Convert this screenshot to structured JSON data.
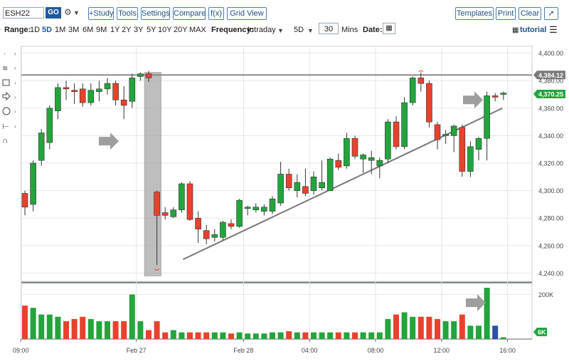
{
  "toolbar": {
    "symbol": "ESH22",
    "go": "GO",
    "study": "+Study",
    "tools": "Tools",
    "settings": "Settings",
    "compare": "Compare",
    "fx": "f(x)",
    "grid_view": "Grid View",
    "templates": "Templates",
    "print": "Print",
    "clear": "Clear"
  },
  "controls": {
    "range_label": "Range:",
    "periods": [
      "1D",
      "5D",
      "1M",
      "3M",
      "6M",
      "9M",
      "1Y",
      "2Y",
      "3Y",
      "5Y",
      "10Y",
      "20Y",
      "MAX"
    ],
    "active_period": "5D",
    "frequency_label": "Frequency:",
    "frequency": "Intraday",
    "interval": "5D",
    "minutes_value": "30",
    "minutes_unit": "Mins",
    "date_label": "Date:",
    "tutorial": "tutorial"
  },
  "chart_data": {
    "type": "candlestick",
    "y_range": [
      4234,
      4405
    ],
    "y_ticks": [
      4240,
      4260,
      4280,
      4300,
      4320,
      4340,
      4360,
      4380,
      4400
    ],
    "y_tick_labels": [
      "4,240.00",
      "4,260.00",
      "4,280.00",
      "4,300.00",
      "4,320.00",
      "4,340.00",
      "4,360.00",
      "4,380.00",
      "4,400.00"
    ],
    "x_labels": [
      "09:00",
      "Feb 27",
      "Feb 28",
      "04:00",
      "08:00",
      "12:00",
      "16:00"
    ],
    "x_label_bar": [
      0,
      14,
      27,
      35,
      43,
      51,
      59
    ],
    "horizontal_line": {
      "value": 4384.12,
      "label": "4,384.12"
    },
    "last_price": {
      "value": 4370.25,
      "label": "4,370.25"
    },
    "volume_ticks": [
      "200K",
      "6K"
    ],
    "volume_max": 230,
    "candles": [
      {
        "o": 4298,
        "h": 4300,
        "l": 4282,
        "c": 4288,
        "v": 150
      },
      {
        "o": 4290,
        "h": 4322,
        "l": 4285,
        "c": 4320,
        "v": 140
      },
      {
        "o": 4322,
        "h": 4345,
        "l": 4318,
        "c": 4342,
        "v": 110
      },
      {
        "o": 4335,
        "h": 4362,
        "l": 4330,
        "c": 4360,
        "v": 110
      },
      {
        "o": 4358,
        "h": 4378,
        "l": 4352,
        "c": 4375,
        "v": 100
      },
      {
        "o": 4375,
        "h": 4380,
        "l": 4366,
        "c": 4374,
        "v": 80
      },
      {
        "o": 4373,
        "h": 4378,
        "l": 4363,
        "c": 4372,
        "v": 90
      },
      {
        "o": 4374,
        "h": 4378,
        "l": 4361,
        "c": 4364,
        "v": 100
      },
      {
        "o": 4364,
        "h": 4378,
        "l": 4362,
        "c": 4373,
        "v": 90
      },
      {
        "o": 4372,
        "h": 4380,
        "l": 4365,
        "c": 4374,
        "v": 80
      },
      {
        "o": 4374,
        "h": 4382,
        "l": 4370,
        "c": 4378,
        "v": 80
      },
      {
        "o": 4378,
        "h": 4380,
        "l": 4362,
        "c": 4366,
        "v": 80
      },
      {
        "o": 4366,
        "h": 4376,
        "l": 4352,
        "c": 4362,
        "v": 80
      },
      {
        "o": 4365,
        "h": 4385,
        "l": 4360,
        "c": 4382,
        "v": 200
      },
      {
        "o": 4383,
        "h": 4386,
        "l": 4380,
        "c": 4385,
        "v": 80
      },
      {
        "o": 4385,
        "h": 4387,
        "l": 4379,
        "c": 4382,
        "v": 40
      },
      {
        "o": 4299,
        "h": 4300,
        "l": 4246,
        "c": 4282,
        "v": 80
      },
      {
        "o": 4284,
        "h": 4288,
        "l": 4279,
        "c": 4282,
        "v": 30
      },
      {
        "o": 4281,
        "h": 4288,
        "l": 4280,
        "c": 4286,
        "v": 40
      },
      {
        "o": 4286,
        "h": 4306,
        "l": 4284,
        "c": 4305,
        "v": 30
      },
      {
        "o": 4305,
        "h": 4307,
        "l": 4278,
        "c": 4279,
        "v": 30
      },
      {
        "o": 4280,
        "h": 4285,
        "l": 4262,
        "c": 4272,
        "v": 30
      },
      {
        "o": 4271,
        "h": 4275,
        "l": 4261,
        "c": 4265,
        "v": 30
      },
      {
        "o": 4266,
        "h": 4272,
        "l": 4263,
        "c": 4268,
        "v": 30
      },
      {
        "o": 4266,
        "h": 4278,
        "l": 4264,
        "c": 4277,
        "v": 30
      },
      {
        "o": 4276,
        "h": 4279,
        "l": 4272,
        "c": 4274,
        "v": 25
      },
      {
        "o": 4274,
        "h": 4294,
        "l": 4273,
        "c": 4293,
        "v": 30
      },
      {
        "o": 4287,
        "h": 4289,
        "l": 4282,
        "c": 4288,
        "v": 25
      },
      {
        "o": 4286,
        "h": 4291,
        "l": 4284,
        "c": 4288,
        "v": 25
      },
      {
        "o": 4285,
        "h": 4290,
        "l": 4282,
        "c": 4288,
        "v": 25
      },
      {
        "o": 4285,
        "h": 4296,
        "l": 4283,
        "c": 4294,
        "v": 30
      },
      {
        "o": 4291,
        "h": 4321,
        "l": 4289,
        "c": 4312,
        "v": 30
      },
      {
        "o": 4312,
        "h": 4316,
        "l": 4300,
        "c": 4302,
        "v": 35
      },
      {
        "o": 4300,
        "h": 4312,
        "l": 4295,
        "c": 4306,
        "v": 30
      },
      {
        "o": 4303,
        "h": 4316,
        "l": 4296,
        "c": 4298,
        "v": 30
      },
      {
        "o": 4300,
        "h": 4314,
        "l": 4297,
        "c": 4310,
        "v": 30
      },
      {
        "o": 4302,
        "h": 4322,
        "l": 4300,
        "c": 4306,
        "v": 30
      },
      {
        "o": 4300,
        "h": 4324,
        "l": 4300,
        "c": 4323,
        "v": 30
      },
      {
        "o": 4322,
        "h": 4327,
        "l": 4315,
        "c": 4317,
        "v": 30
      },
      {
        "o": 4318,
        "h": 4342,
        "l": 4316,
        "c": 4338,
        "v": 30
      },
      {
        "o": 4338,
        "h": 4340,
        "l": 4323,
        "c": 4325,
        "v": 30
      },
      {
        "o": 4323,
        "h": 4327,
        "l": 4313,
        "c": 4326,
        "v": 30
      },
      {
        "o": 4322,
        "h": 4329,
        "l": 4312,
        "c": 4324,
        "v": 30
      },
      {
        "o": 4318,
        "h": 4324,
        "l": 4309,
        "c": 4322,
        "v": 30
      },
      {
        "o": 4323,
        "h": 4352,
        "l": 4320,
        "c": 4350,
        "v": 90
      },
      {
        "o": 4350,
        "h": 4354,
        "l": 4330,
        "c": 4332,
        "v": 110
      },
      {
        "o": 4332,
        "h": 4368,
        "l": 4330,
        "c": 4364,
        "v": 120
      },
      {
        "o": 4364,
        "h": 4383,
        "l": 4362,
        "c": 4382,
        "v": 100
      },
      {
        "o": 4382,
        "h": 4386,
        "l": 4372,
        "c": 4378,
        "v": 100
      },
      {
        "o": 4378,
        "h": 4380,
        "l": 4346,
        "c": 4350,
        "v": 100
      },
      {
        "o": 4348,
        "h": 4350,
        "l": 4330,
        "c": 4337,
        "v": 90
      },
      {
        "o": 4340,
        "h": 4344,
        "l": 4334,
        "c": 4341,
        "v": 80
      },
      {
        "o": 4340,
        "h": 4348,
        "l": 4328,
        "c": 4347,
        "v": 80
      },
      {
        "o": 4346,
        "h": 4348,
        "l": 4310,
        "c": 4314,
        "v": 110
      },
      {
        "o": 4314,
        "h": 4336,
        "l": 4310,
        "c": 4332,
        "v": 60
      },
      {
        "o": 4330,
        "h": 4339,
        "l": 4322,
        "c": 4338,
        "v": 60
      },
      {
        "o": 4338,
        "h": 4372,
        "l": 4322,
        "c": 4369,
        "v": 230
      },
      {
        "o": 4369,
        "h": 4371,
        "l": 4365,
        "c": 4368,
        "v": 60
      },
      {
        "o": 4370,
        "h": 4372,
        "l": 4366,
        "c": 4371,
        "v": 8
      }
    ]
  }
}
